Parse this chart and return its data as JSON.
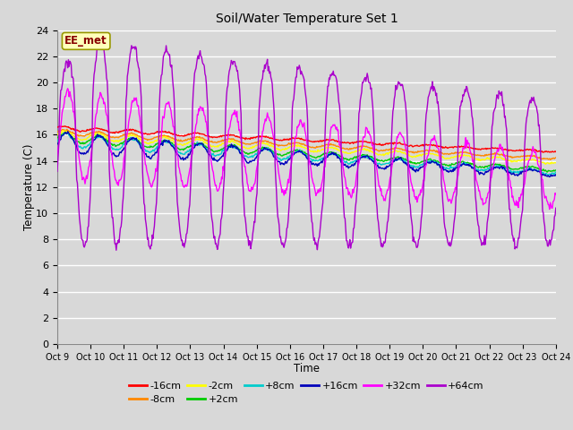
{
  "title": "Soil/Water Temperature Set 1",
  "xlabel": "Time",
  "ylabel": "Temperature (C)",
  "annotation": "EE_met",
  "ylim": [
    0,
    24
  ],
  "yticks": [
    0,
    2,
    4,
    6,
    8,
    10,
    12,
    14,
    16,
    18,
    20,
    22,
    24
  ],
  "xtick_labels": [
    "Oct 9",
    "Oct 10",
    "Oct 11",
    "Oct 12",
    "Oct 13",
    "Oct 14",
    "Oct 15",
    "Oct 16",
    "Oct 17",
    "Oct 18",
    "Oct 19",
    "Oct 20",
    "Oct 21",
    "Oct 22",
    "Oct 23",
    "Oct 24"
  ],
  "series": [
    {
      "label": "-16cm",
      "color": "#ff0000"
    },
    {
      "label": "-8cm",
      "color": "#ff8800"
    },
    {
      "label": "-2cm",
      "color": "#ffff00"
    },
    {
      "label": "+2cm",
      "color": "#00cc00"
    },
    {
      "label": "+8cm",
      "color": "#00cccc"
    },
    {
      "label": "+16cm",
      "color": "#0000bb"
    },
    {
      "label": "+32cm",
      "color": "#ff00ff"
    },
    {
      "label": "+64cm",
      "color": "#aa00cc"
    }
  ],
  "background_color": "#d8d8d8",
  "plot_bg_color": "#d8d8d8",
  "grid_color": "#ffffff",
  "n_days": 15,
  "n_points_per_day": 48
}
